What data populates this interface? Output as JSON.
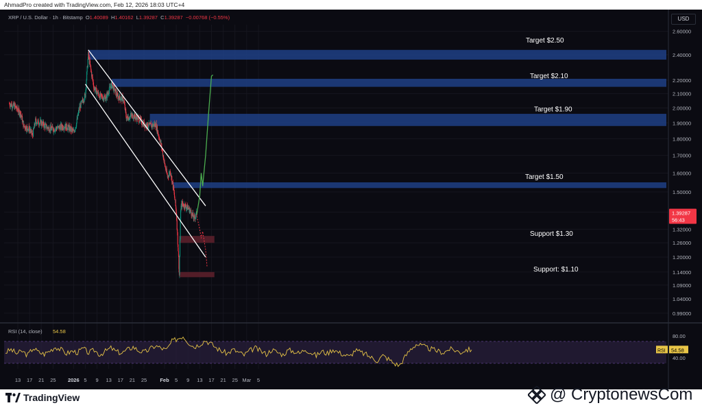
{
  "header": {
    "attribution": "AhmadPro created with TradingView.com, Feb 12, 2026 18:03 UTC+4"
  },
  "legend": {
    "symbol": "XRP / U.S. Dollar · 1h · Bitstamp",
    "o_label": "O",
    "o": "1.40089",
    "h_label": "H",
    "h": "1.40162",
    "l_label": "L",
    "l": "1.39287",
    "c_label": "C",
    "c": "1.39287",
    "change": "−0.00768 (−0.55%)"
  },
  "currency": "USD",
  "price_badge": {
    "price": "1.39287",
    "countdown": "56:43"
  },
  "rsi": {
    "label": "RSI (14, close)",
    "value": "54.58",
    "badge_label": "RSI",
    "badge_value": "54.58"
  },
  "chart_data": [
    {
      "type": "line",
      "subtype": "candlestick",
      "symbol": "XRP / U.S. Dollar",
      "interval": "1h",
      "ylim": [
        0.96,
        2.66
      ],
      "y_scale": "log",
      "y_ticks": [
        "2.60000",
        "2.40000",
        "2.20000",
        "2.10000",
        "2.00000",
        "1.90000",
        "1.80000",
        "1.70000",
        "1.60000",
        "1.50000",
        "1.40000",
        "1.32000",
        "1.26000",
        "1.20000",
        "1.14000",
        "1.09000",
        "1.04000",
        "0.99000"
      ],
      "y_tick_values": [
        2.6,
        2.4,
        2.2,
        2.1,
        2.0,
        1.9,
        1.8,
        1.7,
        1.6,
        1.5,
        1.4,
        1.32,
        1.26,
        1.2,
        1.14,
        1.09,
        1.04,
        0.99
      ],
      "x_ticks": [
        "13",
        "17",
        "21",
        "25",
        "2026",
        "5",
        "9",
        "13",
        "17",
        "21",
        "25",
        "Feb",
        "5",
        "9",
        "13",
        "17",
        "21",
        "25",
        "Mar",
        "5"
      ],
      "x_tick_bold": [
        "2026",
        "Feb"
      ],
      "price_path": [
        {
          "date": "2025-12-10",
          "price": 2.03
        },
        {
          "date": "2025-12-12",
          "price": 2.01
        },
        {
          "date": "2025-12-14",
          "price": 1.96
        },
        {
          "date": "2025-12-15",
          "price": 1.88
        },
        {
          "date": "2025-12-17",
          "price": 1.86
        },
        {
          "date": "2025-12-18",
          "price": 1.82
        },
        {
          "date": "2025-12-19",
          "price": 1.91
        },
        {
          "date": "2025-12-21",
          "price": 1.9
        },
        {
          "date": "2025-12-23",
          "price": 1.87
        },
        {
          "date": "2025-12-25",
          "price": 1.86
        },
        {
          "date": "2025-12-27",
          "price": 1.87
        },
        {
          "date": "2025-12-29",
          "price": 1.88
        },
        {
          "date": "2025-12-31",
          "price": 1.86
        },
        {
          "date": "2026-01-01",
          "price": 1.84
        },
        {
          "date": "2026-01-02",
          "price": 1.9
        },
        {
          "date": "2026-01-03",
          "price": 2.0
        },
        {
          "date": "2026-01-05",
          "price": 2.09
        },
        {
          "date": "2026-01-06",
          "price": 2.4
        },
        {
          "date": "2026-01-07",
          "price": 2.26
        },
        {
          "date": "2026-01-08",
          "price": 2.14
        },
        {
          "date": "2026-01-10",
          "price": 2.08
        },
        {
          "date": "2026-01-12",
          "price": 2.07
        },
        {
          "date": "2026-01-14",
          "price": 2.17
        },
        {
          "date": "2026-01-16",
          "price": 2.08
        },
        {
          "date": "2026-01-18",
          "price": 2.06
        },
        {
          "date": "2026-01-19",
          "price": 1.93
        },
        {
          "date": "2026-01-21",
          "price": 1.95
        },
        {
          "date": "2026-01-23",
          "price": 1.93
        },
        {
          "date": "2026-01-25",
          "price": 1.89
        },
        {
          "date": "2026-01-27",
          "price": 1.88
        },
        {
          "date": "2026-01-29",
          "price": 1.89
        },
        {
          "date": "2026-01-31",
          "price": 1.75
        },
        {
          "date": "2026-02-01",
          "price": 1.65
        },
        {
          "date": "2026-02-02",
          "price": 1.58
        },
        {
          "date": "2026-02-03",
          "price": 1.61
        },
        {
          "date": "2026-02-04",
          "price": 1.52
        },
        {
          "date": "2026-02-05",
          "price": 1.4
        },
        {
          "date": "2026-02-06",
          "price": 1.13
        },
        {
          "date": "2026-02-06T12",
          "price": 1.42
        },
        {
          "date": "2026-02-07",
          "price": 1.44
        },
        {
          "date": "2026-02-09",
          "price": 1.42
        },
        {
          "date": "2026-02-10",
          "price": 1.4
        },
        {
          "date": "2026-02-11",
          "price": 1.37
        },
        {
          "date": "2026-02-12",
          "price": 1.39287
        }
      ],
      "channel": {
        "upper": [
          {
            "date": "2026-01-06",
            "price": 2.44
          },
          {
            "date": "2026-02-15",
            "price": 1.43
          }
        ],
        "lower": [
          {
            "date": "2026-01-05",
            "price": 2.17
          },
          {
            "date": "2026-02-15",
            "price": 1.2
          }
        ]
      },
      "resistance_zones": [
        {
          "low": 2.36,
          "high": 2.44,
          "start": "2026-01-06"
        },
        {
          "low": 2.15,
          "high": 2.21,
          "start": "2026-01-14"
        },
        {
          "low": 1.88,
          "high": 1.96,
          "start": "2026-01-27"
        },
        {
          "low": 1.52,
          "high": 1.55,
          "start": "2026-02-04"
        }
      ],
      "support_zones": [
        {
          "low": 1.26,
          "high": 1.29,
          "start": "2026-02-06",
          "end": "2026-02-18"
        },
        {
          "low": 1.12,
          "high": 1.14,
          "start": "2026-02-06",
          "end": "2026-02-18"
        }
      ],
      "bullish_projection": [
        {
          "date": "2026-02-12",
          "price": 1.39
        },
        {
          "date": "2026-02-13",
          "price": 1.48
        },
        {
          "date": "2026-02-13T12",
          "price": 1.6
        },
        {
          "date": "2026-02-14",
          "price": 1.53
        },
        {
          "date": "2026-02-15",
          "price": 1.7
        },
        {
          "date": "2026-02-16",
          "price": 1.96
        },
        {
          "date": "2026-02-17",
          "price": 2.23
        },
        {
          "date": "2026-02-17T12",
          "price": 2.24
        }
      ],
      "bearish_projection": [
        {
          "date": "2026-02-12",
          "price": 1.38
        },
        {
          "date": "2026-02-13",
          "price": 1.32
        },
        {
          "date": "2026-02-13T12",
          "price": 1.28
        },
        {
          "date": "2026-02-14",
          "price": 1.31
        },
        {
          "date": "2026-02-15",
          "price": 1.23
        },
        {
          "date": "2026-02-15T12",
          "price": 1.16
        }
      ],
      "annotations": [
        {
          "text": "Target $2.50",
          "price": 2.52
        },
        {
          "text": "Target $2.10",
          "price": 2.23
        },
        {
          "text": "Target $1.90",
          "price": 1.99
        },
        {
          "text": "Target $1.50",
          "price": 1.58
        },
        {
          "text": "Support $1.30",
          "price": 1.3
        },
        {
          "text": "Support: $1.10",
          "price": 1.15
        }
      ],
      "colors": {
        "up": "#089981",
        "down": "#f23645",
        "zone_blue": "#1e3f85",
        "zone_red": "#5a1f2b",
        "channel": "#ffffff",
        "bull_path": "#4caf50",
        "bear_path": "#f23645"
      }
    },
    {
      "type": "line",
      "title": "RSI (14, close)",
      "ylim": [
        20,
        100
      ],
      "bands": [
        30,
        70
      ],
      "y_ticks": [
        "80.00",
        "40.00"
      ],
      "current": 54.58,
      "values": [
        50,
        55,
        48,
        52,
        45,
        58,
        50,
        47,
        53,
        60,
        55,
        48,
        52,
        50,
        57,
        49,
        54,
        46,
        52,
        58,
        51,
        49,
        55,
        60,
        53,
        50,
        56,
        62,
        58,
        54,
        70,
        75,
        80,
        68,
        60,
        65,
        72,
        66,
        58,
        52,
        48,
        55,
        50,
        45,
        53,
        58,
        52,
        47,
        55,
        50,
        46,
        54,
        52,
        48,
        56,
        50,
        44,
        52,
        48,
        56,
        50,
        46,
        42,
        54,
        50,
        46,
        40,
        35,
        44,
        38,
        30,
        26,
        42,
        56,
        65,
        62,
        58,
        55,
        52,
        50,
        56,
        54,
        50,
        55,
        54.58
      ],
      "colors": {
        "line": "#e8c547",
        "band_fill": "#2a1f3d",
        "band_line": "#7e57c2"
      }
    }
  ],
  "footer": {
    "tv_brand": "TradingView",
    "watermark": "@ CryptonewsCom"
  }
}
